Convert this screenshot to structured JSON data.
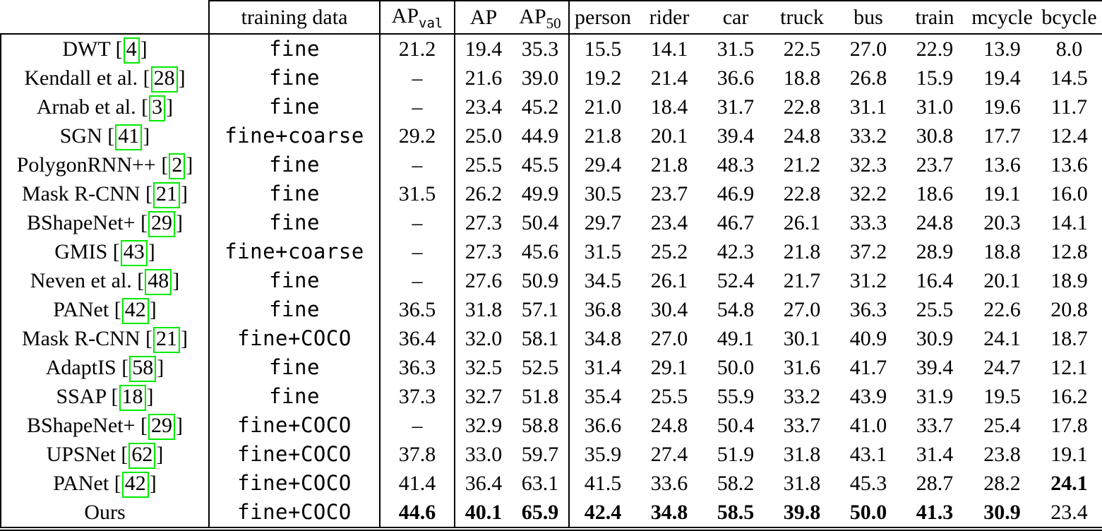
{
  "colors": {
    "citation_box": "#00eb00",
    "rule": "#000000",
    "background": "#ffffff"
  },
  "table": {
    "header": {
      "method": "",
      "training": "training data",
      "ap_val_main": "AP",
      "ap_val_sub": "val",
      "ap": "AP",
      "ap50_main": "AP",
      "ap50_sub": "50",
      "classes": [
        "person",
        "rider",
        "car",
        "truck",
        "bus",
        "train",
        "mcycle",
        "bcycle"
      ]
    },
    "missing_value": "–",
    "rows": [
      {
        "method": "DWT",
        "cite": "4",
        "training": "fine",
        "ap_val": "21.2",
        "ap": "19.4",
        "ap50": "35.3",
        "classes": [
          "15.5",
          "14.1",
          "31.5",
          "22.5",
          "27.0",
          "22.9",
          "13.9",
          "8.0"
        ],
        "bold": []
      },
      {
        "method": "Kendall et al.",
        "cite": "28",
        "training": "fine",
        "ap_val": "–",
        "ap": "21.6",
        "ap50": "39.0",
        "classes": [
          "19.2",
          "21.4",
          "36.6",
          "18.8",
          "26.8",
          "15.9",
          "19.4",
          "14.5"
        ],
        "bold": []
      },
      {
        "method": "Arnab et al.",
        "cite": "3",
        "training": "fine",
        "ap_val": "–",
        "ap": "23.4",
        "ap50": "45.2",
        "classes": [
          "21.0",
          "18.4",
          "31.7",
          "22.8",
          "31.1",
          "31.0",
          "19.6",
          "11.7"
        ],
        "bold": []
      },
      {
        "method": "SGN",
        "cite": "41",
        "training": "fine+coarse",
        "ap_val": "29.2",
        "ap": "25.0",
        "ap50": "44.9",
        "classes": [
          "21.8",
          "20.1",
          "39.4",
          "24.8",
          "33.2",
          "30.8",
          "17.7",
          "12.4"
        ],
        "bold": []
      },
      {
        "method": "PolygonRNN++",
        "cite": "2",
        "training": "fine",
        "ap_val": "–",
        "ap": "25.5",
        "ap50": "45.5",
        "classes": [
          "29.4",
          "21.8",
          "48.3",
          "21.2",
          "32.3",
          "23.7",
          "13.6",
          "13.6"
        ],
        "bold": []
      },
      {
        "method": "Mask R-CNN",
        "cite": "21",
        "training": "fine",
        "ap_val": "31.5",
        "ap": "26.2",
        "ap50": "49.9",
        "classes": [
          "30.5",
          "23.7",
          "46.9",
          "22.8",
          "32.2",
          "18.6",
          "19.1",
          "16.0"
        ],
        "bold": []
      },
      {
        "method": "BShapeNet+",
        "cite": "29",
        "training": "fine",
        "ap_val": "–",
        "ap": "27.3",
        "ap50": "50.4",
        "classes": [
          "29.7",
          "23.4",
          "46.7",
          "26.1",
          "33.3",
          "24.8",
          "20.3",
          "14.1"
        ],
        "bold": []
      },
      {
        "method": "GMIS",
        "cite": "43",
        "training": "fine+coarse",
        "ap_val": "–",
        "ap": "27.3",
        "ap50": "45.6",
        "classes": [
          "31.5",
          "25.2",
          "42.3",
          "21.8",
          "37.2",
          "28.9",
          "18.8",
          "12.8"
        ],
        "bold": []
      },
      {
        "method": "Neven et al.",
        "cite": "48",
        "training": "fine",
        "ap_val": "–",
        "ap": "27.6",
        "ap50": "50.9",
        "classes": [
          "34.5",
          "26.1",
          "52.4",
          "21.7",
          "31.2",
          "16.4",
          "20.1",
          "18.9"
        ],
        "bold": []
      },
      {
        "method": "PANet",
        "cite": "42",
        "training": "fine",
        "ap_val": "36.5",
        "ap": "31.8",
        "ap50": "57.1",
        "classes": [
          "36.8",
          "30.4",
          "54.8",
          "27.0",
          "36.3",
          "25.5",
          "22.6",
          "20.8"
        ],
        "bold": []
      },
      {
        "method": "Mask R-CNN",
        "cite": "21",
        "training": "fine+COCO",
        "ap_val": "36.4",
        "ap": "32.0",
        "ap50": "58.1",
        "classes": [
          "34.8",
          "27.0",
          "49.1",
          "30.1",
          "40.9",
          "30.9",
          "24.1",
          "18.7"
        ],
        "bold": []
      },
      {
        "method": "AdaptIS",
        "cite": "58",
        "training": "fine",
        "ap_val": "36.3",
        "ap": "32.5",
        "ap50": "52.5",
        "classes": [
          "31.4",
          "29.1",
          "50.0",
          "31.6",
          "41.7",
          "39.4",
          "24.7",
          "12.1"
        ],
        "bold": []
      },
      {
        "method": "SSAP",
        "cite": "18",
        "training": "fine",
        "ap_val": "37.3",
        "ap": "32.7",
        "ap50": "51.8",
        "classes": [
          "35.4",
          "25.5",
          "55.9",
          "33.2",
          "43.9",
          "31.9",
          "19.5",
          "16.2"
        ],
        "bold": []
      },
      {
        "method": "BShapeNet+",
        "cite": "29",
        "training": "fine+COCO",
        "ap_val": "–",
        "ap": "32.9",
        "ap50": "58.8",
        "classes": [
          "36.6",
          "24.8",
          "50.4",
          "33.7",
          "41.0",
          "33.7",
          "25.4",
          "17.8"
        ],
        "bold": []
      },
      {
        "method": "UPSNet",
        "cite": "62",
        "training": "fine+COCO",
        "ap_val": "37.8",
        "ap": "33.0",
        "ap50": "59.7",
        "classes": [
          "35.9",
          "27.4",
          "51.9",
          "31.8",
          "43.1",
          "31.4",
          "23.8",
          "19.1"
        ],
        "bold": []
      },
      {
        "method": "PANet",
        "cite": "42",
        "training": "fine+COCO",
        "ap_val": "41.4",
        "ap": "36.4",
        "ap50": "63.1",
        "classes": [
          "41.5",
          "33.6",
          "58.2",
          "31.8",
          "45.3",
          "28.7",
          "28.2",
          "24.1"
        ],
        "bold": [
          "c7"
        ]
      },
      {
        "method": "Ours",
        "cite": null,
        "training": "fine+COCO",
        "ap_val": "44.6",
        "ap": "40.1",
        "ap50": "65.9",
        "classes": [
          "42.4",
          "34.8",
          "58.5",
          "39.8",
          "50.0",
          "41.3",
          "30.9",
          "23.4"
        ],
        "bold": [
          "ap_val",
          "ap",
          "ap50",
          "c0",
          "c1",
          "c2",
          "c3",
          "c4",
          "c5",
          "c6"
        ]
      }
    ]
  }
}
